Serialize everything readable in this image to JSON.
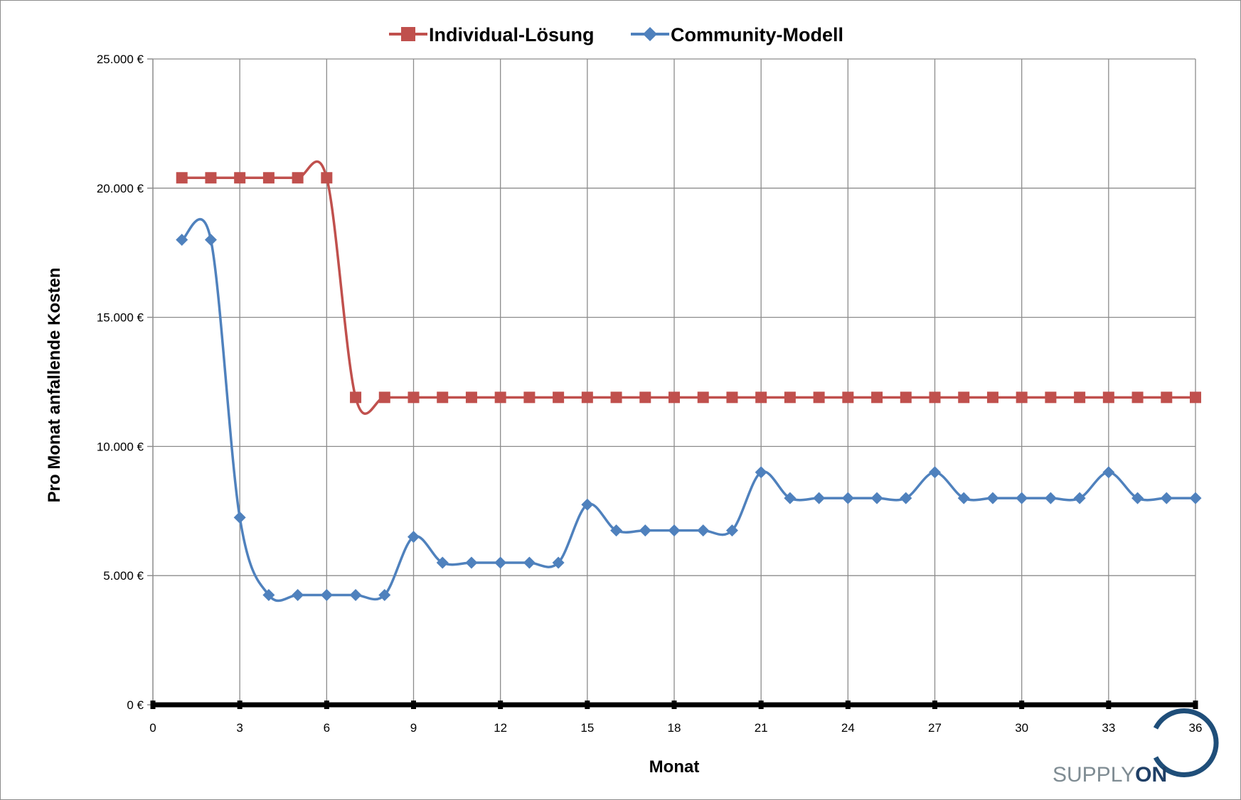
{
  "chart_data": {
    "type": "line",
    "title": "",
    "xlabel": "Monat",
    "ylabel": "Pro Monat anfallende Kosten",
    "xlim": [
      0,
      36
    ],
    "ylim": [
      0,
      25000
    ],
    "x_ticks": [
      0,
      3,
      6,
      9,
      12,
      15,
      18,
      21,
      24,
      27,
      30,
      33,
      36
    ],
    "y_ticks": [
      0,
      5000,
      10000,
      15000,
      20000,
      25000
    ],
    "y_tick_labels": [
      "0 €",
      "5.000 €",
      "10.000 €",
      "15.000 €",
      "20.000 €",
      "25.000 €"
    ],
    "x": [
      1,
      2,
      3,
      4,
      5,
      6,
      7,
      8,
      9,
      10,
      11,
      12,
      13,
      14,
      15,
      16,
      17,
      18,
      19,
      20,
      21,
      22,
      23,
      24,
      25,
      26,
      27,
      28,
      29,
      30,
      31,
      32,
      33,
      34,
      35,
      36
    ],
    "grid": true,
    "legend_position": "top",
    "series": [
      {
        "name": "Individual-Lösung",
        "color": "#c0504d",
        "marker": "square",
        "values": [
          20400,
          20400,
          20400,
          20400,
          20400,
          20400,
          11900,
          11900,
          11900,
          11900,
          11900,
          11900,
          11900,
          11900,
          11900,
          11900,
          11900,
          11900,
          11900,
          11900,
          11900,
          11900,
          11900,
          11900,
          11900,
          11900,
          11900,
          11900,
          11900,
          11900,
          11900,
          11900,
          11900,
          11900,
          11900,
          11900
        ]
      },
      {
        "name": "Community-Modell",
        "color": "#4f81bd",
        "marker": "diamond",
        "values": [
          18000,
          18000,
          7250,
          4250,
          4250,
          4250,
          4250,
          4250,
          6500,
          5500,
          5500,
          5500,
          5500,
          5500,
          7750,
          6750,
          6750,
          6750,
          6750,
          6750,
          9000,
          8000,
          8000,
          8000,
          8000,
          8000,
          9000,
          8000,
          8000,
          8000,
          8000,
          8000,
          9000,
          8000,
          8000,
          8000
        ]
      }
    ]
  },
  "logo": {
    "text_light": "SUPPLY",
    "text_bold": "ON",
    "text_color": "#7f8c93",
    "ring_color": "#1f4e79"
  }
}
